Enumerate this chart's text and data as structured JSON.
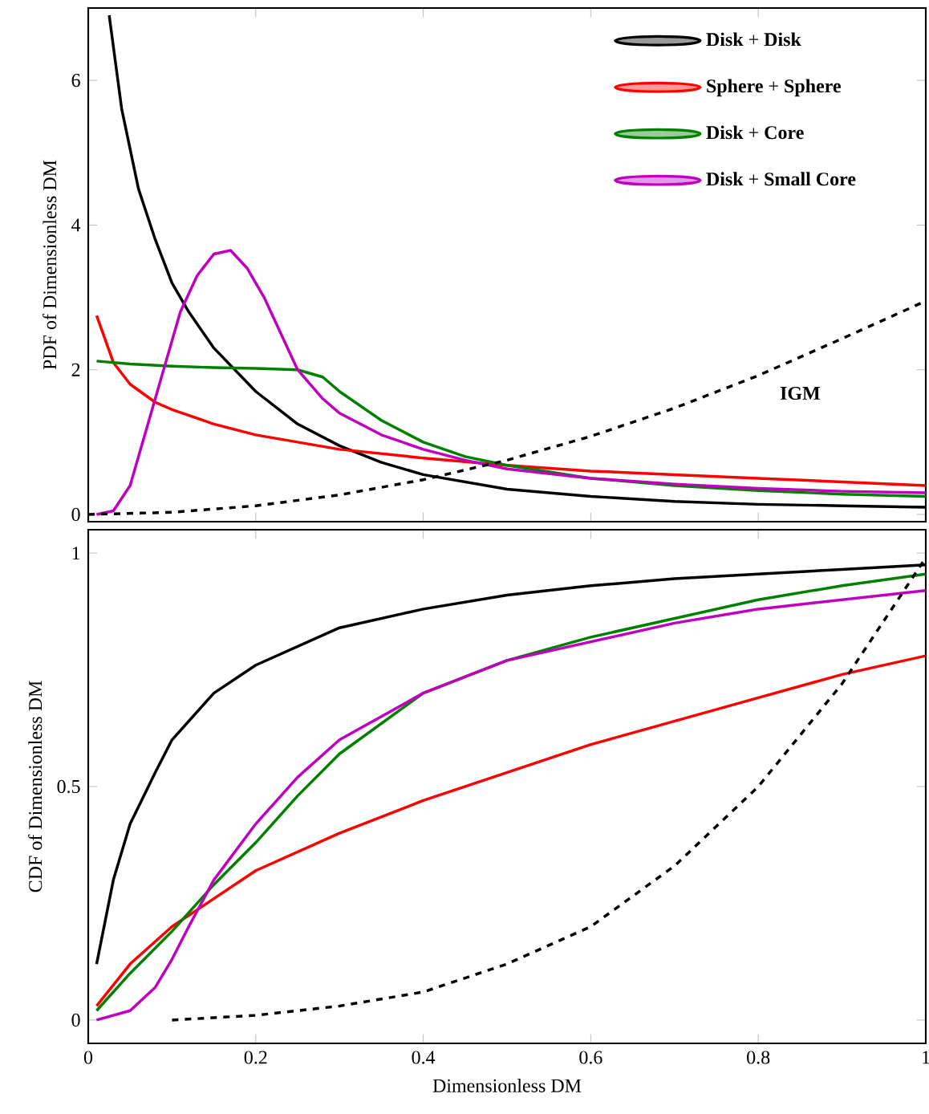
{
  "chart_data": [
    {
      "type": "line",
      "ylabel": "PDF of Dimensionless DM",
      "xlim": [
        0,
        1
      ],
      "ylim": [
        -0.1,
        7
      ],
      "xticks": [
        0,
        0.2,
        0.4,
        0.6,
        0.8,
        1
      ],
      "yticks": [
        0,
        2,
        4,
        6
      ],
      "tick_labels": "y",
      "legend": "top right",
      "annotations": [
        "IGM"
      ],
      "series": [
        {
          "name": "**Disk** + **Disk**",
          "color": "#000000",
          "x": [
            0.025,
            0.04,
            0.06,
            0.08,
            0.1,
            0.12,
            0.15,
            0.2,
            0.25,
            0.3,
            0.35,
            0.4,
            0.5,
            0.6,
            0.7,
            0.8,
            0.9,
            1.0
          ],
          "values": [
            6.9,
            5.6,
            4.5,
            3.8,
            3.2,
            2.8,
            2.3,
            1.7,
            1.25,
            0.95,
            0.72,
            0.55,
            0.35,
            0.25,
            0.18,
            0.14,
            0.12,
            0.1
          ]
        },
        {
          "name": "**Sphere** + **Sphere**",
          "color": "#ff0000",
          "x": [
            0.01,
            0.03,
            0.05,
            0.08,
            0.1,
            0.15,
            0.2,
            0.3,
            0.4,
            0.5,
            0.6,
            0.7,
            0.8,
            0.9,
            1.0
          ],
          "values": [
            2.75,
            2.1,
            1.8,
            1.55,
            1.45,
            1.25,
            1.1,
            0.9,
            0.78,
            0.68,
            0.6,
            0.55,
            0.5,
            0.45,
            0.4
          ]
        },
        {
          "name": "**Disk** + **Core**",
          "color": "#008000",
          "x": [
            0.01,
            0.05,
            0.1,
            0.15,
            0.2,
            0.25,
            0.28,
            0.3,
            0.35,
            0.4,
            0.45,
            0.5,
            0.6,
            0.7,
            0.8,
            0.9,
            1.0
          ],
          "values": [
            2.12,
            2.08,
            2.05,
            2.03,
            2.02,
            2.0,
            1.9,
            1.7,
            1.3,
            1.0,
            0.8,
            0.68,
            0.5,
            0.4,
            0.33,
            0.28,
            0.25
          ]
        },
        {
          "name": "**Disk** + **Small Core**",
          "color": "#bf00bf",
          "x": [
            0.01,
            0.03,
            0.05,
            0.07,
            0.09,
            0.11,
            0.13,
            0.15,
            0.17,
            0.19,
            0.21,
            0.23,
            0.25,
            0.28,
            0.3,
            0.35,
            0.4,
            0.45,
            0.5,
            0.6,
            0.7,
            0.8,
            0.9,
            1.0
          ],
          "values": [
            0,
            0.05,
            0.4,
            1.2,
            2.0,
            2.8,
            3.3,
            3.6,
            3.65,
            3.4,
            3.0,
            2.5,
            2.0,
            1.6,
            1.4,
            1.1,
            0.9,
            0.75,
            0.63,
            0.5,
            0.42,
            0.36,
            0.32,
            0.3
          ]
        },
        {
          "color": "#000000",
          "line_style": "dashed",
          "x": [
            0,
            0.1,
            0.2,
            0.3,
            0.4,
            0.5,
            0.6,
            0.7,
            0.8,
            0.9,
            1.0
          ],
          "values": [
            0,
            0.03,
            0.12,
            0.27,
            0.48,
            0.75,
            1.08,
            1.47,
            1.92,
            2.43,
            2.95
          ]
        }
      ]
    },
    {
      "type": "line",
      "xlabel": "Dimensionless DM",
      "ylabel": "CDF of Dimensionless DM",
      "xlim": [
        0,
        1
      ],
      "ylim": [
        -0.05,
        1.05
      ],
      "xticks": [
        0,
        0.2,
        0.4,
        0.6,
        0.8,
        1
      ],
      "yticks": [
        0,
        0.5,
        1
      ],
      "series": [
        {
          "color": "#000000",
          "x": [
            0.01,
            0.03,
            0.05,
            0.08,
            0.1,
            0.15,
            0.2,
            0.3,
            0.4,
            0.5,
            0.6,
            0.7,
            0.8,
            0.9,
            1.0
          ],
          "values": [
            0.12,
            0.3,
            0.42,
            0.53,
            0.6,
            0.7,
            0.76,
            0.84,
            0.88,
            0.91,
            0.93,
            0.945,
            0.955,
            0.965,
            0.975
          ]
        },
        {
          "color": "#ff0000",
          "x": [
            0.01,
            0.05,
            0.1,
            0.15,
            0.2,
            0.3,
            0.4,
            0.5,
            0.6,
            0.7,
            0.8,
            0.9,
            1.0
          ],
          "values": [
            0.03,
            0.12,
            0.2,
            0.26,
            0.32,
            0.4,
            0.47,
            0.53,
            0.59,
            0.64,
            0.69,
            0.74,
            0.78
          ]
        },
        {
          "color": "#008000",
          "x": [
            0.01,
            0.05,
            0.1,
            0.15,
            0.2,
            0.25,
            0.3,
            0.4,
            0.5,
            0.6,
            0.7,
            0.8,
            0.9,
            1.0
          ],
          "values": [
            0.02,
            0.1,
            0.19,
            0.29,
            0.38,
            0.48,
            0.57,
            0.7,
            0.77,
            0.82,
            0.86,
            0.9,
            0.93,
            0.955
          ]
        },
        {
          "color": "#bf00bf",
          "x": [
            0.01,
            0.05,
            0.08,
            0.1,
            0.12,
            0.15,
            0.2,
            0.25,
            0.3,
            0.4,
            0.5,
            0.6,
            0.7,
            0.8,
            0.9,
            1.0
          ],
          "values": [
            0,
            0.02,
            0.07,
            0.13,
            0.2,
            0.3,
            0.42,
            0.52,
            0.6,
            0.7,
            0.77,
            0.81,
            0.85,
            0.88,
            0.9,
            0.92
          ]
        },
        {
          "color": "#000000",
          "line_style": "dashed",
          "x": [
            0.1,
            0.2,
            0.3,
            0.4,
            0.5,
            0.6,
            0.7,
            0.8,
            0.9,
            1.0
          ],
          "values": [
            0,
            0.01,
            0.03,
            0.06,
            0.12,
            0.2,
            0.33,
            0.5,
            0.72,
            0.99
          ]
        }
      ]
    }
  ]
}
